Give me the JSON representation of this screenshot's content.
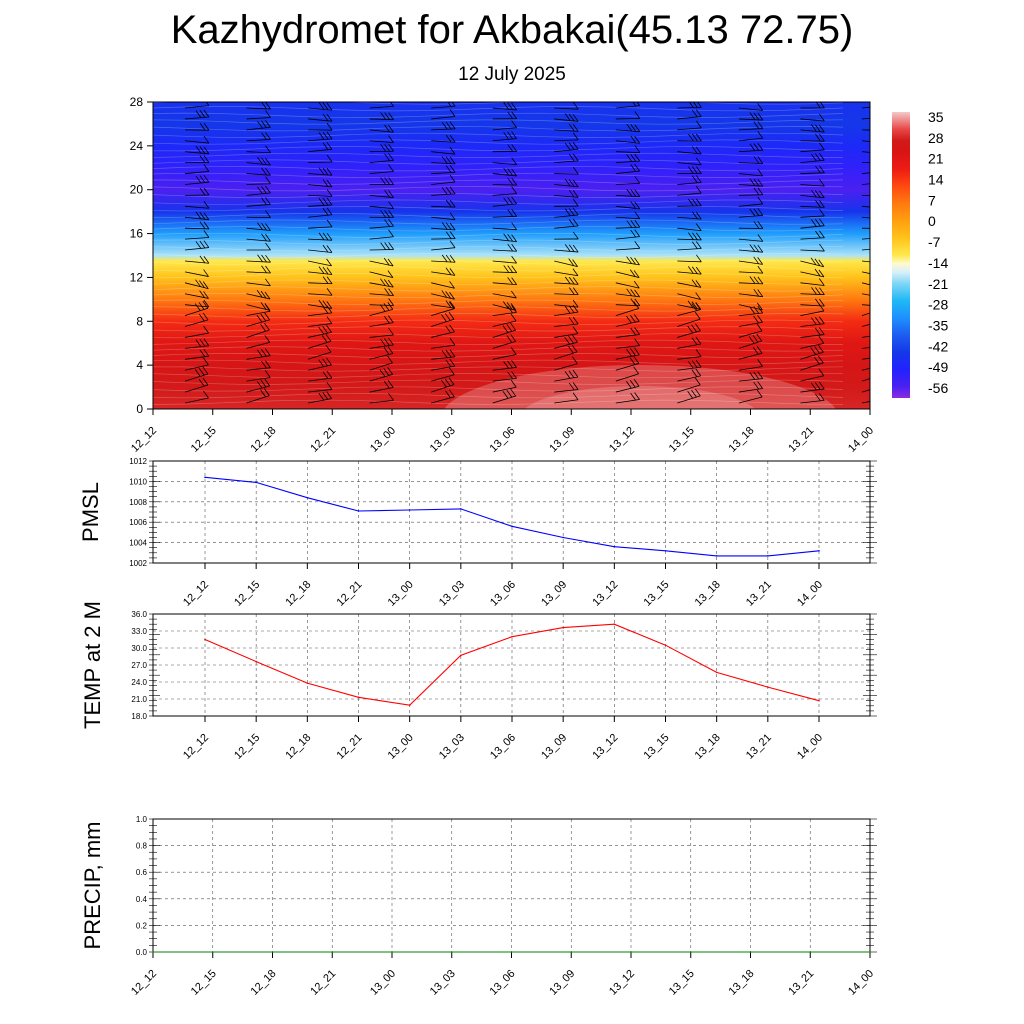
{
  "title": "Kazhydromet for Akbakai(45.13 72.75)",
  "subtitle": "12 July 2025",
  "chart_data": [
    {
      "type": "heatmap",
      "name": "temperature-cross-section",
      "x_ticks": [
        "12_12",
        "12_15",
        "12_18",
        "12_21",
        "13_00",
        "13_03",
        "13_06",
        "13_09",
        "13_12",
        "13_15",
        "13_18",
        "13_21",
        "14_00"
      ],
      "y_ticks": [
        0,
        4,
        8,
        12,
        16,
        20,
        24,
        28
      ],
      "ylim": [
        0,
        28
      ],
      "colorbar_labels": [
        35,
        28,
        21,
        14,
        7,
        0,
        -7,
        -14,
        -21,
        -28,
        -35,
        -42,
        -49,
        -56
      ],
      "colorbar_range": [
        -60,
        40
      ],
      "level_temperature": [
        {
          "level": 0,
          "temp": 31
        },
        {
          "level": 2,
          "temp": 29
        },
        {
          "level": 4,
          "temp": 27
        },
        {
          "level": 6,
          "temp": 24
        },
        {
          "level": 8,
          "temp": 18
        },
        {
          "level": 10,
          "temp": 8
        },
        {
          "level": 12,
          "temp": -4
        },
        {
          "level": 13.5,
          "temp": -10
        },
        {
          "level": 14,
          "temp": -18
        },
        {
          "level": 16,
          "temp": -30
        },
        {
          "level": 18,
          "temp": -45
        },
        {
          "level": 20,
          "temp": -56
        },
        {
          "level": 22,
          "temp": -52
        },
        {
          "level": 24,
          "temp": -48
        },
        {
          "level": 26,
          "temp": -44
        },
        {
          "level": 28,
          "temp": -46
        }
      ],
      "wind_barbs": true
    },
    {
      "type": "line",
      "name": "pmsl",
      "ylabel": "PMSL",
      "x": [
        "12_12",
        "12_15",
        "12_18",
        "12_21",
        "13_00",
        "13_03",
        "13_06",
        "13_09",
        "13_12",
        "13_15",
        "13_18",
        "13_21",
        "14_00"
      ],
      "values": [
        1010.4,
        1009.9,
        1008.4,
        1007.1,
        1007.2,
        1007.3,
        1005.6,
        1004.5,
        1003.6,
        1003.2,
        1002.7,
        1002.7,
        1003.2
      ],
      "y_ticks": [
        1002,
        1004,
        1006,
        1008,
        1010,
        1012
      ],
      "ylim": [
        1002,
        1012
      ],
      "color": "#0000ff",
      "grid": true
    },
    {
      "type": "line",
      "name": "temp-2m",
      "ylabel": "TEMP at 2 M",
      "x": [
        "12_12",
        "12_15",
        "12_18",
        "12_21",
        "13_00",
        "13_03",
        "13_06",
        "13_09",
        "13_12",
        "13_15",
        "13_18",
        "13_21",
        "14_00"
      ],
      "values": [
        31.5,
        27.6,
        23.8,
        21.3,
        19.9,
        28.7,
        32.0,
        33.6,
        34.2,
        30.5,
        25.7,
        23.1,
        20.7
      ],
      "y_ticks": [
        "18.0",
        "21.0",
        "24.0",
        "27.0",
        "30.0",
        "33.0",
        "36.0"
      ],
      "ylim": [
        18,
        36
      ],
      "color": "#ff0000",
      "grid": true
    },
    {
      "type": "line",
      "name": "precip",
      "ylabel": "PRECIP, mm",
      "x": [
        "12_12",
        "12_15",
        "12_18",
        "12_21",
        "13_00",
        "13_03",
        "13_06",
        "13_09",
        "13_12",
        "13_15",
        "13_18",
        "13_21",
        "14_00"
      ],
      "values": [
        0,
        0,
        0,
        0,
        0,
        0,
        0,
        0,
        0,
        0,
        0,
        0,
        0
      ],
      "y_ticks": [
        "0.0",
        "0.2",
        "0.4",
        "0.6",
        "0.8",
        "1.0"
      ],
      "ylim": [
        0,
        1
      ],
      "color": "#008000",
      "grid": true
    }
  ]
}
